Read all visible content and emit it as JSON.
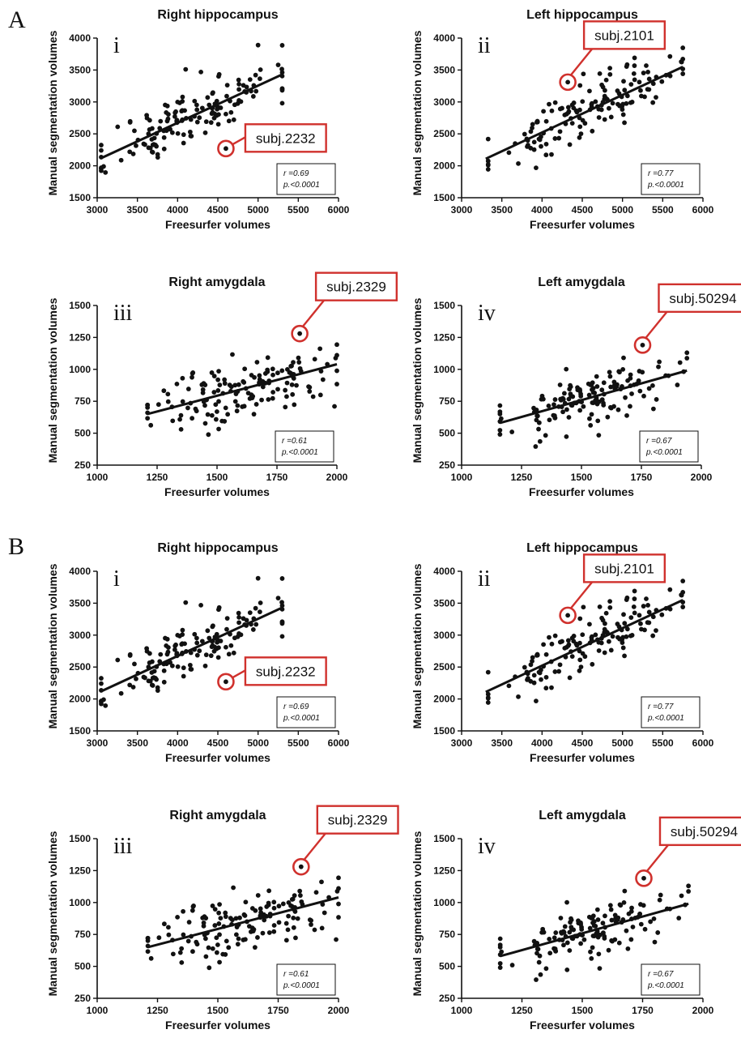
{
  "figure": {
    "section_letters": [
      "A",
      "B"
    ],
    "axis_labels": {
      "x": "Freesurfer volumes",
      "y": "Manual segmentation volumes"
    }
  },
  "chart_data": [
    {
      "type": "scatter",
      "section": "A",
      "numeral": "i",
      "title": "Right hippocampus",
      "xlabel": "Freesurfer volumes",
      "ylabel": "Manual segmentation volumes",
      "xlim": [
        3000,
        6000
      ],
      "ylim": [
        1500,
        4000
      ],
      "xticks": [
        3000,
        3500,
        4000,
        4500,
        5000,
        5500,
        6000
      ],
      "yticks": [
        1500,
        2000,
        2500,
        3000,
        3500,
        4000
      ],
      "fit": {
        "x": [
          3050,
          5300
        ],
        "y": [
          2120,
          3430
        ]
      },
      "stats": [
        "r =0.69",
        "p.<0.0001"
      ],
      "outlier": {
        "label": "subj.2232",
        "x": 4600,
        "y": 2270
      },
      "points": {
        "seed": 11,
        "count": 140,
        "x_range": [
          3050,
          5300
        ],
        "residual_sd": 230,
        "fixed": [
          [
            3080,
            1990
          ],
          [
            4100,
            3510
          ],
          [
            5000,
            3890
          ],
          [
            5250,
            3580
          ],
          [
            5300,
            2980
          ]
        ]
      }
    },
    {
      "type": "scatter",
      "section": "A",
      "numeral": "ii",
      "title": "Left hippocampus",
      "xlabel": "Freesurfer volumes",
      "ylabel": "Manual segmentation volumes",
      "xlim": [
        3000,
        6000
      ],
      "ylim": [
        1500,
        4000
      ],
      "xticks": [
        3000,
        3500,
        4000,
        4500,
        5000,
        5500,
        6000
      ],
      "yticks": [
        1500,
        2000,
        2500,
        3000,
        3500,
        4000
      ],
      "fit": {
        "x": [
          3300,
          5750
        ],
        "y": [
          2110,
          3550
        ]
      },
      "stats": [
        "r =0.77",
        "p.<0.0001"
      ],
      "outlier": {
        "label": "subj.2101",
        "x": 4320,
        "y": 3310
      },
      "points": {
        "seed": 23,
        "count": 140,
        "x_range": [
          3330,
          5750
        ],
        "residual_sd": 200,
        "fixed": [
          [
            3330,
            2010
          ],
          [
            5150,
            3690
          ],
          [
            5730,
            3630
          ],
          [
            4050,
            2170
          ]
        ]
      }
    },
    {
      "type": "scatter",
      "section": "A",
      "numeral": "iii",
      "title": "Right amygdala",
      "xlabel": "Freesurfer volumes",
      "ylabel": "Manual segmentation volumes",
      "xlim": [
        1000,
        2000
      ],
      "ylim": [
        250,
        1500
      ],
      "xticks": [
        1000,
        1250,
        1500,
        1750,
        2000
      ],
      "yticks": [
        250,
        500,
        750,
        1000,
        1250,
        1500
      ],
      "fit": {
        "x": [
          1210,
          2000
        ],
        "y": [
          650,
          1040
        ]
      },
      "stats": [
        "r =0.61",
        "p.<0.0001"
      ],
      "outlier": {
        "label": "subj.2329",
        "x": 1845,
        "y": 1280
      },
      "points": {
        "seed": 37,
        "count": 140,
        "x_range": [
          1210,
          2000
        ],
        "residual_sd": 120,
        "fixed": [
          [
            1210,
            660
          ],
          [
            1350,
            530
          ],
          [
            1990,
            710
          ],
          [
            1960,
            1040
          ]
        ]
      }
    },
    {
      "type": "scatter",
      "section": "A",
      "numeral": "iv",
      "title": "Left amygdala",
      "xlabel": "Freesurfer volumes",
      "ylabel": "Manual segmentation volumes",
      "xlim": [
        1000,
        2000
      ],
      "ylim": [
        250,
        1500
      ],
      "xticks": [
        1000,
        1250,
        1500,
        1750,
        2000
      ],
      "yticks": [
        250,
        500,
        750,
        1000,
        1250,
        1500
      ],
      "fit": {
        "x": [
          1160,
          1940
        ],
        "y": [
          580,
          990
        ]
      },
      "stats": [
        "r =0.67",
        "p.<0.0001"
      ],
      "outlier": {
        "label": "subj.50294",
        "x": 1755,
        "y": 1190
      },
      "points": {
        "seed": 53,
        "count": 140,
        "x_range": [
          1160,
          1940
        ],
        "residual_sd": 110,
        "fixed": [
          [
            1210,
            510
          ],
          [
            1940,
            1130
          ],
          [
            1160,
            650
          ]
        ]
      }
    },
    {
      "type": "scatter",
      "section": "B",
      "numeral": "i",
      "title": "Right hippocampus",
      "xlabel": "Freesurfer volumes",
      "ylabel": "Manual segmentation volumes",
      "xlim": [
        3000,
        6000
      ],
      "ylim": [
        1500,
        4000
      ],
      "xticks": [
        3000,
        3500,
        4000,
        4500,
        5000,
        5500,
        6000
      ],
      "yticks": [
        1500,
        2000,
        2500,
        3000,
        3500,
        4000
      ],
      "fit": {
        "x": [
          3050,
          5300
        ],
        "y": [
          2120,
          3430
        ]
      },
      "stats": [
        "r =0.69",
        "p.<0.0001"
      ],
      "outlier": {
        "label": "subj.2232",
        "x": 4600,
        "y": 2270
      },
      "points": {
        "seed": 11,
        "count": 140,
        "x_range": [
          3050,
          5300
        ],
        "residual_sd": 230,
        "fixed": [
          [
            3080,
            1990
          ],
          [
            4100,
            3510
          ],
          [
            5000,
            3890
          ],
          [
            5250,
            3580
          ],
          [
            5300,
            2980
          ]
        ]
      }
    },
    {
      "type": "scatter",
      "section": "B",
      "numeral": "ii",
      "title": "Left hippocampus",
      "xlabel": "Freesurfer volumes",
      "ylabel": "Manual segmentation volumes",
      "xlim": [
        3000,
        6000
      ],
      "ylim": [
        1500,
        4000
      ],
      "xticks": [
        3000,
        3500,
        4000,
        4500,
        5000,
        5500,
        6000
      ],
      "yticks": [
        1500,
        2000,
        2500,
        3000,
        3500,
        4000
      ],
      "fit": {
        "x": [
          3300,
          5750
        ],
        "y": [
          2110,
          3550
        ]
      },
      "stats": [
        "r =0.77",
        "p.<0.0001"
      ],
      "outlier": {
        "label": "subj.2101",
        "x": 4320,
        "y": 3310
      },
      "points": {
        "seed": 23,
        "count": 140,
        "x_range": [
          3330,
          5750
        ],
        "residual_sd": 200,
        "fixed": [
          [
            3330,
            2010
          ],
          [
            5150,
            3690
          ],
          [
            5730,
            3630
          ],
          [
            4050,
            2170
          ]
        ]
      }
    },
    {
      "type": "scatter",
      "section": "B",
      "numeral": "iii",
      "title": "Right amygdala",
      "xlabel": "Freesurfer volumes",
      "ylabel": "Manual segmentation volumes",
      "xlim": [
        1000,
        2000
      ],
      "ylim": [
        250,
        1500
      ],
      "xticks": [
        1000,
        1250,
        1500,
        1750,
        2000
      ],
      "yticks": [
        250,
        500,
        750,
        1000,
        1250,
        1500
      ],
      "fit": {
        "x": [
          1210,
          2000
        ],
        "y": [
          650,
          1040
        ]
      },
      "stats": [
        "r =0.61",
        "p.<0.0001"
      ],
      "outlier": {
        "label": "subj.2329",
        "x": 1845,
        "y": 1280
      },
      "points": {
        "seed": 37,
        "count": 140,
        "x_range": [
          1210,
          2000
        ],
        "residual_sd": 120,
        "fixed": [
          [
            1210,
            660
          ],
          [
            1350,
            530
          ],
          [
            1990,
            710
          ],
          [
            1960,
            1040
          ]
        ]
      }
    },
    {
      "type": "scatter",
      "section": "B",
      "numeral": "iv",
      "title": "Left amygdala",
      "xlabel": "Freesurfer volumes",
      "ylabel": "Manual segmentation volumes",
      "xlim": [
        1000,
        2000
      ],
      "ylim": [
        250,
        1500
      ],
      "xticks": [
        1000,
        1250,
        1500,
        1750,
        2000
      ],
      "yticks": [
        250,
        500,
        750,
        1000,
        1250,
        1500
      ],
      "fit": {
        "x": [
          1160,
          1940
        ],
        "y": [
          580,
          990
        ]
      },
      "stats": [
        "r =0.67",
        "p.<0.0001"
      ],
      "outlier": {
        "label": "subj.50294",
        "x": 1755,
        "y": 1190
      },
      "points": {
        "seed": 53,
        "count": 140,
        "x_range": [
          1160,
          1940
        ],
        "residual_sd": 110,
        "fixed": [
          [
            1210,
            510
          ],
          [
            1940,
            1130
          ],
          [
            1160,
            650
          ]
        ]
      }
    }
  ],
  "colors": {
    "callout": "#d0312d",
    "ink": "#111111",
    "background": "#ffffff"
  }
}
